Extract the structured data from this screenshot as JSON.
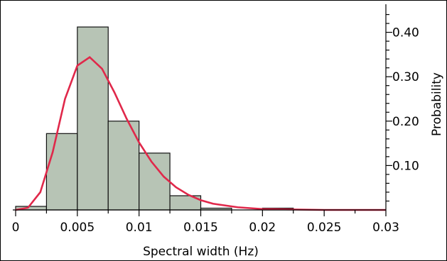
{
  "chart_data": {
    "type": "bar",
    "title": "",
    "xlabel": "Spectral width (Hz)",
    "ylabel": "Probability",
    "xlim": [
      0,
      0.03
    ],
    "ylim": [
      0,
      0.46
    ],
    "x_ticks": [
      "0",
      "0.005",
      "0.01",
      "0.015",
      "0.02",
      "0.025",
      "0.03"
    ],
    "x_tick_values": [
      0,
      0.005,
      0.01,
      0.015,
      0.02,
      0.025,
      0.03
    ],
    "y_ticks": [
      "0.10",
      "0.20",
      "0.30",
      "0.40"
    ],
    "y_tick_values": [
      0.1,
      0.2,
      0.3,
      0.4
    ],
    "y_axis_side": "right",
    "grid": false,
    "bins": [
      {
        "start": 0.0,
        "end": 0.0025,
        "value": 0.008
      },
      {
        "start": 0.0025,
        "end": 0.005,
        "value": 0.172
      },
      {
        "start": 0.005,
        "end": 0.0075,
        "value": 0.412
      },
      {
        "start": 0.0075,
        "end": 0.01,
        "value": 0.2
      },
      {
        "start": 0.01,
        "end": 0.0125,
        "value": 0.128
      },
      {
        "start": 0.0125,
        "end": 0.015,
        "value": 0.032
      },
      {
        "start": 0.015,
        "end": 0.0175,
        "value": 0.004
      },
      {
        "start": 0.0175,
        "end": 0.02,
        "value": 0.0
      },
      {
        "start": 0.02,
        "end": 0.0225,
        "value": 0.004
      },
      {
        "start": 0.0225,
        "end": 0.025,
        "value": 0.0
      },
      {
        "start": 0.025,
        "end": 0.0275,
        "value": 0.0
      },
      {
        "start": 0.0275,
        "end": 0.03,
        "value": 0.0
      }
    ],
    "fit_curve": {
      "color": "#e0284a",
      "x": [
        0,
        0.001,
        0.002,
        0.003,
        0.004,
        0.005,
        0.006,
        0.007,
        0.008,
        0.009,
        0.01,
        0.011,
        0.012,
        0.013,
        0.014,
        0.015,
        0.016,
        0.018,
        0.02,
        0.025,
        0.03
      ],
      "y": [
        0.0,
        0.005,
        0.04,
        0.13,
        0.25,
        0.325,
        0.344,
        0.318,
        0.265,
        0.205,
        0.152,
        0.109,
        0.075,
        0.051,
        0.034,
        0.022,
        0.014,
        0.006,
        0.002,
        0.0,
        0.0
      ]
    },
    "bar_color": "#b7c4b5"
  }
}
